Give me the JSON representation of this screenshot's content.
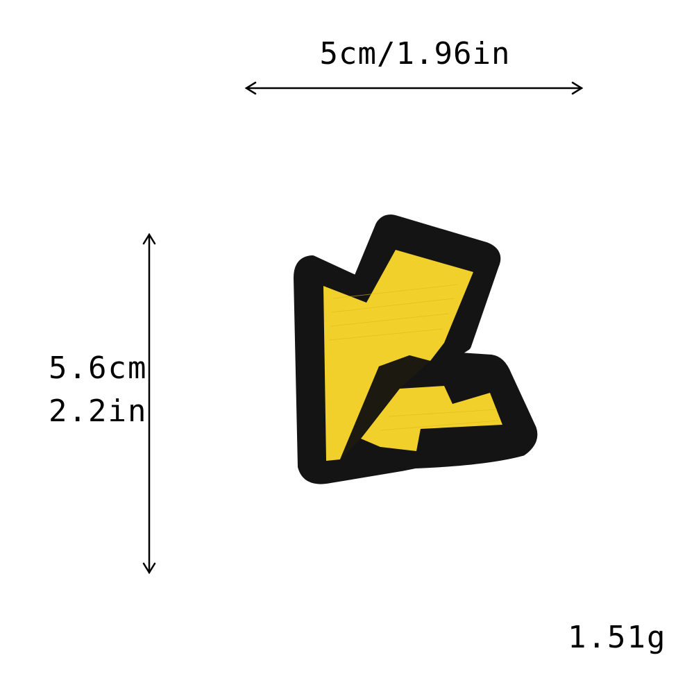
{
  "dimensions": {
    "width_label": "5cm/1.96in",
    "height_cm": "5.6cm",
    "height_in": "2.2in"
  },
  "weight": "1.51g",
  "colors": {
    "patch_fill": "#f2d02c",
    "patch_border": "#111111",
    "arrows": "#000000"
  },
  "icons": {
    "product": "lightning-bolt-patch"
  }
}
